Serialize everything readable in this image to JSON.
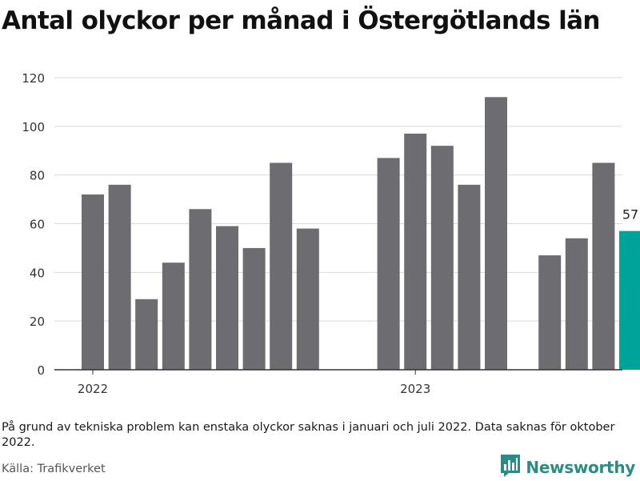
{
  "title": "Antal olyckor per månad i Östergötlands län",
  "note": "På grund av tekniska problem kan enstaka olyckor saknas i januari och juli 2022. Data saknas för oktober 2022.",
  "source": "Källa: Trafikverket",
  "brand": {
    "name": "Newsworthy",
    "icon": "bar-chart-speech-bubble-icon"
  },
  "colors": {
    "bar": "#6d6c71",
    "highlight": "#00a39a",
    "grid": "#d9d9d9",
    "axis": "#333333",
    "brand": "#2e8b84"
  },
  "chart_data": {
    "type": "bar",
    "months": [
      "2022-01",
      "2022-02",
      "2022-03",
      "2022-04",
      "2022-05",
      "2022-06",
      "2022-07",
      "2022-08",
      "2022-09",
      "2022-10",
      "2022-11",
      "2022-12",
      "2023-01",
      "2023-02",
      "2023-03",
      "2023-04",
      "2023-05",
      "2023-06",
      "2023-07",
      "2023-08",
      "2023-09"
    ],
    "values": [
      72,
      76,
      29,
      44,
      66,
      59,
      50,
      85,
      58,
      null,
      null,
      87,
      97,
      92,
      76,
      112,
      null,
      47,
      54,
      85,
      57
    ],
    "highlight_index": 20,
    "data_labels": [
      {
        "index": 20,
        "text": "57"
      }
    ],
    "x_ticks": [
      {
        "month": "2022-01",
        "label": "2022"
      },
      {
        "month": "2023-01",
        "label": "2023"
      }
    ],
    "y_ticks": [
      0,
      20,
      40,
      60,
      80,
      100,
      120
    ],
    "ylim": [
      0,
      120
    ],
    "grid": true,
    "legend": "none"
  }
}
